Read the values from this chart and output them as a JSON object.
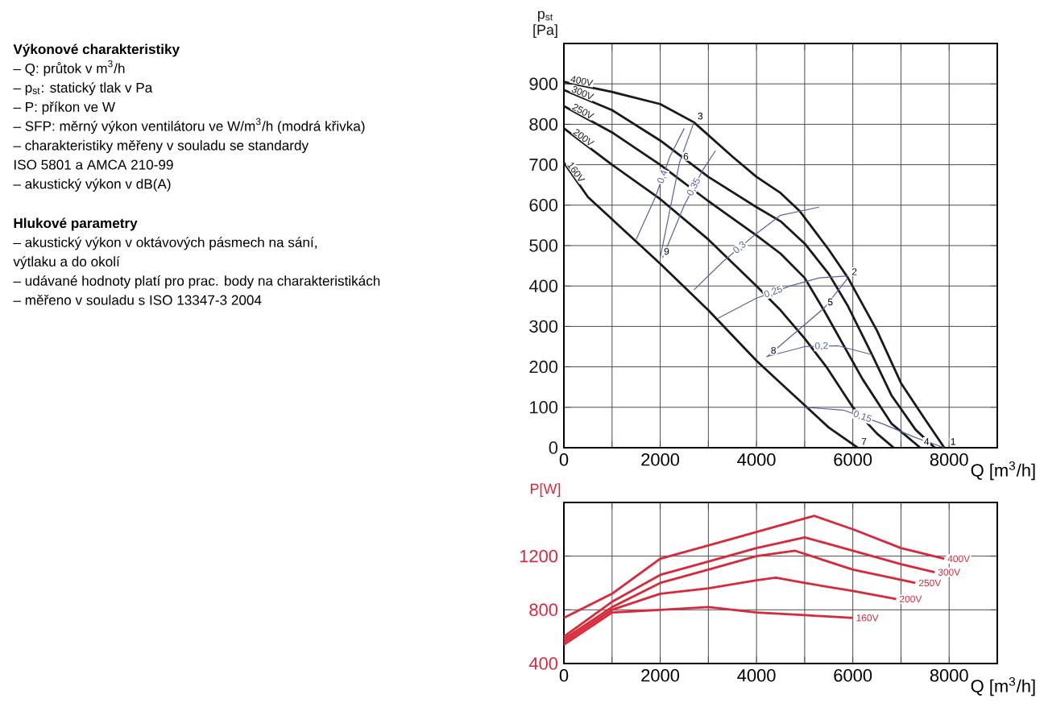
{
  "chart_data": [
    {
      "type": "other",
      "title": "Výkonové charakteristiky",
      "annotations": [
        "– Q: průtok v m$^{3}$/h",
        "– p$_{st}$: statický tlak v Pa",
        "– P: příkon ve W",
        "– SFP: měrný výkon ventilátoru ve W/m$^{3}$/h (modrá křivka)",
        "– charakteristiky měřeny v souladu se standardy",
        "ISO 5801 a AMCA 210-99",
        "– akustický výkon v dB(A)"
      ]
    },
    {
      "type": "other",
      "title": "Hlukové parametry",
      "annotations": [
        "– akustický výkon v oktávových pásmech na sání,",
        "výtlaku a do okolí",
        "– udávané hodnoty platí pro prac. body na charakteristikách",
        "– měřeno v souladu s ISO 13347-3 2004"
      ]
    },
    {
      "type": "line",
      "xlabel": "Q [m$^{3}$/h]",
      "ylabel": "p$_{st}$ [Pa]",
      "xlim": [
        0,
        9000
      ],
      "ylim": [
        0,
        1000
      ],
      "grid": true,
      "xticks": [
        0,
        {
          "value": 1000,
          "label": null
        },
        2000,
        {
          "value": 3000,
          "label": null
        },
        4000,
        {
          "value": 5000,
          "label": null
        },
        6000,
        {
          "value": 7000,
          "label": null
        },
        8000
      ],
      "yticks": [
        0,
        100,
        200,
        300,
        400,
        500,
        600,
        700,
        800,
        900
      ],
      "series": [
        {
          "name": "400V",
          "color": "#1a1a1a",
          "x": [
            0,
            1000,
            2000,
            2700,
            3500,
            4000,
            4500,
            4900,
            5500,
            5900,
            6500,
            7000,
            7500,
            7900
          ],
          "values": [
            905,
            880,
            850,
            805,
            720,
            670,
            630,
            585,
            490,
            420,
            290,
            160,
            70,
            0
          ]
        },
        {
          "name": "300V",
          "color": "#1a1a1a",
          "x": [
            0,
            1000,
            2000,
            3000,
            4000,
            4500,
            5000,
            5500,
            5900,
            6400,
            6800,
            7300,
            7700
          ],
          "values": [
            885,
            835,
            760,
            670,
            595,
            560,
            505,
            430,
            350,
            230,
            130,
            45,
            0
          ]
        },
        {
          "name": "250V",
          "color": "#1a1a1a",
          "x": [
            0,
            1000,
            2000,
            3000,
            4000,
            4500,
            5000,
            5400,
            6200,
            6800,
            7400
          ],
          "values": [
            845,
            780,
            700,
            610,
            525,
            480,
            420,
            340,
            170,
            60,
            0
          ]
        },
        {
          "name": "200V",
          "color": "#1a1a1a",
          "x": [
            0,
            1000,
            2000,
            3000,
            4000,
            4500,
            5000,
            5450,
            6000,
            6500,
            6850
          ],
          "values": [
            790,
            700,
            615,
            515,
            400,
            340,
            270,
            200,
            100,
            35,
            0
          ]
        },
        {
          "name": "160V",
          "color": "#1a1a1a",
          "x": [
            0,
            500,
            1000,
            2000,
            3000,
            4000,
            4500,
            5000,
            5500,
            6100
          ],
          "values": [
            705,
            620,
            565,
            455,
            340,
            215,
            160,
            105,
            50,
            0
          ]
        },
        {
          "name": "0,4",
          "color": "#5b5fa8",
          "x": [
            1500,
            1900,
            2200,
            2500
          ],
          "values": [
            515,
            620,
            720,
            790
          ]
        },
        {
          "name": "0,35",
          "color": "#5b5fa8",
          "x": [
            2050,
            2500,
            2900,
            3150
          ],
          "values": [
            470,
            600,
            690,
            735
          ]
        },
        {
          "name": "0,3",
          "color": "#5b5fa8",
          "x": [
            2700,
            3300,
            4000,
            4500,
            5300
          ],
          "values": [
            390,
            460,
            530,
            575,
            595
          ]
        },
        {
          "name": "0,25",
          "color": "#5b5fa8",
          "x": [
            3200,
            4000,
            4700,
            5300,
            5900
          ],
          "values": [
            320,
            370,
            400,
            420,
            425
          ]
        },
        {
          "name": "0,2",
          "color": "#5b5fa8",
          "x": [
            4200,
            5000,
            5700,
            6400
          ],
          "values": [
            225,
            250,
            252,
            230
          ]
        },
        {
          "name": "0,15",
          "color": "#5b5fa8",
          "x": [
            5000,
            5800,
            6600,
            7300,
            7900
          ],
          "values": [
            100,
            93,
            60,
            25,
            0
          ]
        },
        {
          "color": "#5b5fa8",
          "x": [
            2000,
            2400,
            2700
          ],
          "values": [
            470,
            705,
            805
          ]
        },
        {
          "color": "#5b5fa8",
          "x": [
            4220,
            5400,
            5900
          ],
          "values": [
            225,
            345,
            420
          ]
        }
      ],
      "annotations": [
        {
          "text": "1",
          "x": 7950,
          "y": 0
        },
        {
          "text": "2",
          "x": 5900,
          "y": 420
        },
        {
          "text": "3",
          "x": 2700,
          "y": 805
        },
        {
          "text": "4",
          "x": 7400,
          "y": 0
        },
        {
          "text": "5",
          "x": 5400,
          "y": 345
        },
        {
          "text": "6",
          "x": 2400,
          "y": 705
        },
        {
          "text": "7",
          "x": 6100,
          "y": 0
        },
        {
          "text": "8",
          "x": 4220,
          "y": 225
        },
        {
          "text": "9",
          "x": 2000,
          "y": 470
        }
      ]
    },
    {
      "type": "line",
      "xlabel": "Q [m$^{3}$/h]",
      "ylabel": "P[W]",
      "xlim": [
        0,
        9000
      ],
      "ylim": [
        400,
        1600
      ],
      "grid": true,
      "xticks": [
        0,
        {
          "value": 1000,
          "label": null
        },
        2000,
        {
          "value": 3000,
          "label": null
        },
        4000,
        {
          "value": 5000,
          "label": null
        },
        6000,
        {
          "value": 7000,
          "label": null
        },
        8000
      ],
      "yticks": [
        400,
        800,
        1200
      ],
      "series": [
        {
          "name": "400V",
          "color": "#d9283a",
          "x": [
            0,
            1000,
            2000,
            3000,
            4000,
            5000,
            5200,
            6000,
            7000,
            7900
          ],
          "values": [
            740,
            920,
            1180,
            1280,
            1380,
            1480,
            1500,
            1400,
            1260,
            1180
          ]
        },
        {
          "name": "300V",
          "color": "#d9283a",
          "x": [
            0,
            1000,
            2000,
            3000,
            4000,
            5000,
            6000,
            7000,
            7700
          ],
          "values": [
            600,
            860,
            1060,
            1160,
            1260,
            1340,
            1240,
            1140,
            1080
          ]
        },
        {
          "name": "250V",
          "color": "#d9283a",
          "x": [
            0,
            1000,
            2000,
            3000,
            4000,
            4800,
            6000,
            7300
          ],
          "values": [
            580,
            820,
            1000,
            1100,
            1200,
            1240,
            1100,
            1000
          ]
        },
        {
          "name": "200V",
          "color": "#d9283a",
          "x": [
            0,
            1000,
            2000,
            3000,
            4000,
            4400,
            5000,
            6000,
            6900
          ],
          "values": [
            560,
            800,
            920,
            960,
            1020,
            1040,
            1000,
            940,
            880
          ]
        },
        {
          "name": "160V",
          "color": "#d9283a",
          "x": [
            0,
            1000,
            2000,
            3000,
            4000,
            5000,
            6000
          ],
          "values": [
            540,
            780,
            800,
            820,
            780,
            760,
            740
          ]
        }
      ]
    }
  ]
}
